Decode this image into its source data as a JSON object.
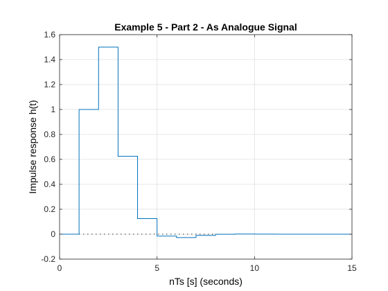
{
  "chart_data": {
    "type": "line",
    "style": "stairs",
    "title": "Example 5 - Part 2 - As Analogue Signal",
    "xlabel": "nTs [s] (seconds)",
    "ylabel": "Impulse response h(t)",
    "xlim": [
      0,
      15
    ],
    "ylim": [
      -0.2,
      1.6
    ],
    "xticks": [
      0,
      5,
      10,
      15
    ],
    "yticks": [
      -0.2,
      0,
      0.2,
      0.4,
      0.6,
      0.8,
      1,
      1.2,
      1.4,
      1.6
    ],
    "xtick_labels": [
      "0",
      "5",
      "10",
      "15"
    ],
    "ytick_labels": [
      "-0.2",
      "0",
      "0.2",
      "0.4",
      "0.6",
      "0.8",
      "1",
      "1.2",
      "1.4",
      "1.6"
    ],
    "grid": true,
    "series": [
      {
        "x": [
          0,
          1,
          2,
          3,
          4,
          5,
          6,
          7,
          8,
          9,
          10,
          11,
          12,
          13,
          14,
          15
        ],
        "values": [
          0,
          1,
          1.5,
          0.625,
          0.125,
          -0.0156,
          -0.0273,
          -0.0098,
          -0.0005,
          0.0015,
          0.0008,
          0.0002,
          0,
          0,
          0,
          0
        ],
        "color": "#0072BD"
      }
    ],
    "reference_line": {
      "y": 0,
      "x_range": [
        1,
        8
      ],
      "style": "dotted",
      "color": "#000000"
    }
  }
}
